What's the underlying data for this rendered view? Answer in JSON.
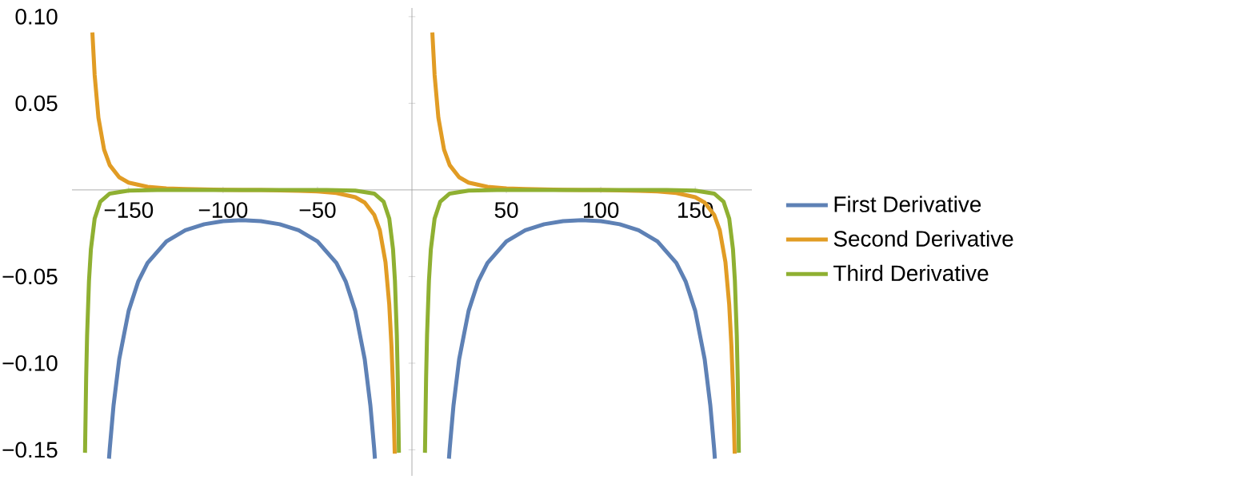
{
  "chart_data": {
    "type": "line",
    "xlim": [
      -180,
      180
    ],
    "ylim": [
      -0.165,
      0.105
    ],
    "xticks": [
      {
        "value": -150,
        "label": "−150"
      },
      {
        "value": -100,
        "label": "−100"
      },
      {
        "value": -50,
        "label": "−50"
      },
      50,
      100,
      150
    ],
    "yticks": [
      {
        "value": -0.15,
        "label": "−0.15"
      },
      {
        "value": -0.1,
        "label": "−0.10"
      },
      {
        "value": -0.05,
        "label": "−0.05"
      },
      0.05,
      {
        "value": 0.1,
        "label": "0.10"
      }
    ],
    "legend": "right",
    "grid": false,
    "marker": "none",
    "line_style": "solid",
    "series": [
      {
        "name": "First Derivative",
        "color": "#5e81b5",
        "x": [
          -160.4,
          -160,
          -158,
          -155,
          -150,
          -145,
          -140,
          -130,
          -120,
          -110,
          -100,
          -90,
          -80,
          -70,
          -60,
          -50,
          -40,
          -35,
          -30,
          -25,
          -22,
          -20,
          -19.6,
          0,
          19.6,
          20,
          22,
          25,
          30,
          35,
          40,
          50,
          60,
          70,
          80,
          90,
          100,
          110,
          120,
          130,
          140,
          145,
          150,
          155,
          158,
          160,
          160.4
        ],
        "values": [
          -0.1551,
          -0.1492,
          -0.1244,
          -0.0977,
          -0.0698,
          -0.053,
          -0.0422,
          -0.0297,
          -0.0233,
          -0.0198,
          -0.018,
          -0.0175,
          -0.018,
          -0.0198,
          -0.0233,
          -0.0297,
          -0.0422,
          -0.053,
          -0.0698,
          -0.0977,
          -0.1244,
          -0.1492,
          -0.1551,
          null,
          -0.1551,
          -0.1492,
          -0.1244,
          -0.0977,
          -0.0698,
          -0.053,
          -0.0422,
          -0.0297,
          -0.0233,
          -0.0198,
          -0.018,
          -0.0175,
          -0.018,
          -0.0198,
          -0.0233,
          -0.0297,
          -0.0422,
          -0.053,
          -0.0698,
          -0.0977,
          -0.1244,
          -0.1492,
          -0.1551
        ]
      },
      {
        "name": "Second Derivative",
        "color": "#e19c24",
        "x": [
          -169.2,
          -168,
          -166,
          -163,
          -160,
          -155,
          -150,
          -140,
          -130,
          -120,
          -110,
          -100,
          -90,
          -80,
          -70,
          -60,
          -50,
          -40,
          -30,
          -25,
          -20,
          -17,
          -14,
          -12,
          -10.8,
          -10,
          -9.1,
          0,
          10.8,
          12,
          14,
          17,
          20,
          25,
          30,
          40,
          50,
          60,
          70,
          80,
          90,
          100,
          110,
          120,
          130,
          140,
          150,
          155,
          160,
          163,
          166,
          168,
          169.2,
          170,
          170.9
        ],
        "values": [
          0.0909,
          0.0663,
          0.0417,
          0.0233,
          0.0143,
          0.0073,
          0.0042,
          0.0018,
          0.0009,
          0.0005,
          0.0003,
          0.0001,
          0,
          -0.0001,
          -0.0003,
          -0.0005,
          -0.0009,
          -0.0018,
          -0.0042,
          -0.0073,
          -0.0143,
          -0.0233,
          -0.0417,
          -0.0663,
          -0.0909,
          -0.1146,
          -0.1522,
          null,
          0.0909,
          0.0663,
          0.0417,
          0.0233,
          0.0143,
          0.0073,
          0.0042,
          0.0018,
          0.0009,
          0.0005,
          0.0003,
          0.0001,
          0,
          -0.0001,
          -0.0003,
          -0.0005,
          -0.0009,
          -0.0018,
          -0.0042,
          -0.0073,
          -0.0143,
          -0.0233,
          -0.0417,
          -0.0663,
          -0.0909,
          -0.1146,
          -0.1522
        ]
      },
      {
        "name": "Third Derivative",
        "color": "#8fb032",
        "x": [
          -173.1,
          -172.5,
          -172,
          -171,
          -170,
          -168,
          -165,
          -160,
          -150,
          -135,
          -90,
          -45,
          -30,
          -20,
          -15,
          -12,
          -10,
          -9,
          -8,
          -7.5,
          -6.9,
          0,
          6.9,
          7.5,
          8,
          9,
          10,
          12,
          15,
          20,
          30,
          45,
          90,
          135,
          150,
          160,
          165,
          168,
          170,
          171,
          172,
          172.5,
          173.1
        ],
        "values": [
          -0.1517,
          -0.1087,
          -0.0839,
          -0.0524,
          -0.0344,
          -0.0166,
          -0.0068,
          -0.0021,
          -0.0004,
          -0.0001,
          0,
          -0.0001,
          -0.0004,
          -0.0021,
          -0.0068,
          -0.0166,
          -0.0344,
          -0.0524,
          -0.0839,
          -0.1087,
          -0.1517,
          null,
          -0.1517,
          -0.1087,
          -0.0839,
          -0.0524,
          -0.0344,
          -0.0166,
          -0.0068,
          -0.0021,
          -0.0004,
          -0.0001,
          0,
          -0.0001,
          -0.0004,
          -0.0021,
          -0.0068,
          -0.0166,
          -0.0344,
          -0.0524,
          -0.0839,
          -0.1087,
          -0.1517
        ]
      }
    ]
  }
}
